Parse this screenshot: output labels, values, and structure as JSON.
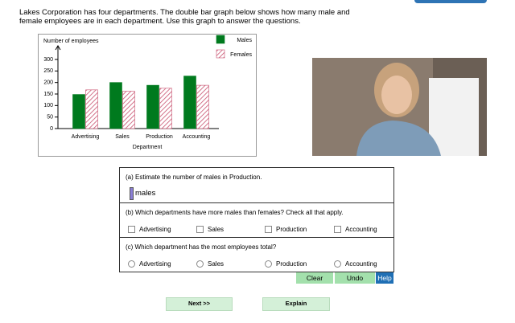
{
  "intro": "Lakes Corporation has four departments. The double bar graph below shows how many male and female employees are in each department. Use this graph to answer the questions.",
  "chart_data": {
    "type": "bar",
    "y_label": "Number of employees",
    "x_label": "Department",
    "categories": [
      "Advertising",
      "Sales",
      "Production",
      "Accounting"
    ],
    "series": [
      {
        "name": "Males",
        "color": "#007a1e",
        "pattern": "solid",
        "values": [
          148,
          200,
          188,
          228
        ]
      },
      {
        "name": "Females",
        "color": "#c8506e",
        "pattern": "hatch",
        "values": [
          168,
          162,
          175,
          188
        ]
      }
    ],
    "ylim": [
      0,
      300
    ],
    "yticks": [
      0,
      50,
      100,
      150,
      200,
      250,
      300
    ]
  },
  "questions": [
    {
      "label": "(a) Estimate the number of males in Production.",
      "unit": "males"
    },
    {
      "label": "(b) Which departments have more males than females? Check all that apply.",
      "input": "checkbox",
      "options": [
        "Advertising",
        "Sales",
        "Production",
        "Accounting"
      ]
    },
    {
      "label": "(c) Which department has the most employees total?",
      "input": "radio",
      "options": [
        "Advertising",
        "Sales",
        "Production",
        "Accounting"
      ]
    }
  ],
  "buttons": {
    "clear": "Clear",
    "undo": "Undo",
    "help": "Help",
    "next": "Next >>",
    "explain": "Explain"
  }
}
